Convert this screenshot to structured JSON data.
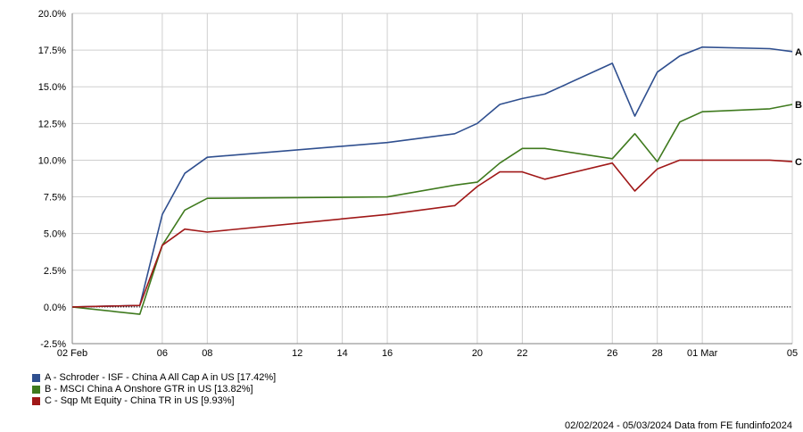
{
  "chart_data": {
    "type": "line",
    "title": "",
    "xlabel": "",
    "ylabel": "",
    "ylim": [
      -2.5,
      20
    ],
    "yticks": [
      -2.5,
      0,
      2.5,
      5,
      7.5,
      10,
      12.5,
      15,
      17.5,
      20
    ],
    "ytick_labels": [
      "-2.5%",
      "0.0%",
      "2.5%",
      "5.0%",
      "7.5%",
      "10.0%",
      "12.5%",
      "15.0%",
      "17.5%",
      "20.0%"
    ],
    "xlim": [
      "2024-02-02",
      "2024-03-05"
    ],
    "xticks": [
      "2024-02-02",
      "2024-02-06",
      "2024-02-08",
      "2024-02-12",
      "2024-02-14",
      "2024-02-16",
      "2024-02-20",
      "2024-02-22",
      "2024-02-26",
      "2024-02-28",
      "2024-03-01",
      "2024-03-05"
    ],
    "xtick_labels": [
      "02 Feb",
      "06",
      "08",
      "12",
      "14",
      "16",
      "20",
      "22",
      "26",
      "28",
      "01 Mar",
      "05"
    ],
    "grid": true,
    "legend_position": "bottom-left",
    "x": [
      "2024-02-02",
      "2024-02-05",
      "2024-02-06",
      "2024-02-07",
      "2024-02-08",
      "2024-02-16",
      "2024-02-19",
      "2024-02-20",
      "2024-02-21",
      "2024-02-22",
      "2024-02-23",
      "2024-02-26",
      "2024-02-27",
      "2024-02-28",
      "2024-02-29",
      "2024-03-01",
      "2024-03-04",
      "2024-03-05"
    ],
    "series": [
      {
        "name": "A - Schroder - ISF - China A All Cap A in US [17.42%]",
        "end_label": "A",
        "color": "#2f4f8f",
        "values": [
          0.0,
          0.1,
          6.3,
          9.1,
          10.2,
          11.2,
          11.8,
          12.5,
          13.8,
          14.2,
          14.5,
          16.6,
          13.0,
          16.0,
          17.1,
          17.7,
          17.6,
          17.4
        ]
      },
      {
        "name": "B - MSCI China A Onshore GTR in US [13.82%]",
        "end_label": "B",
        "color": "#3f7a1e",
        "values": [
          0.0,
          -0.5,
          4.2,
          6.6,
          7.4,
          7.5,
          8.3,
          8.5,
          9.8,
          10.8,
          10.8,
          10.1,
          11.8,
          9.9,
          12.6,
          13.3,
          13.5,
          13.8
        ]
      },
      {
        "name": "C - Sqp Mt Equity - China TR in US [9.93%]",
        "end_label": "C",
        "color": "#a01818",
        "values": [
          0.0,
          0.1,
          4.2,
          5.3,
          5.1,
          6.3,
          6.9,
          8.2,
          9.2,
          9.2,
          8.7,
          9.8,
          7.9,
          9.4,
          10.0,
          10.0,
          10.0,
          9.9
        ]
      }
    ]
  },
  "footer": "02/02/2024 - 05/03/2024 Data from FE fundinfo2024"
}
